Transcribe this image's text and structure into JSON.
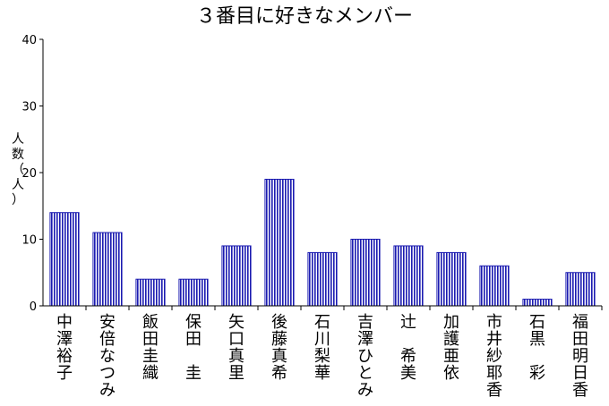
{
  "chart_data": {
    "type": "bar",
    "title": "３番目に好きなメンバー",
    "ylabel": "人数（人）",
    "xlabel": "",
    "ylim": [
      0,
      40
    ],
    "yticks": [
      0,
      10,
      20,
      30,
      40
    ],
    "grid": false,
    "categories": [
      "中澤裕子",
      "安倍なつみ",
      "飯田圭織",
      "保田　圭",
      "矢口真里",
      "後藤真希",
      "石川梨華",
      "吉澤ひとみ",
      "辻　希美",
      "加護亜依",
      "市井紗耶香",
      "石黒　彩",
      "福田明日香"
    ],
    "values": [
      14,
      11,
      4,
      4,
      9,
      19,
      8,
      10,
      9,
      8,
      6,
      1,
      5
    ],
    "bar_color": "#1a1ab0",
    "bar_fill_pattern": "vertical-stripes"
  }
}
